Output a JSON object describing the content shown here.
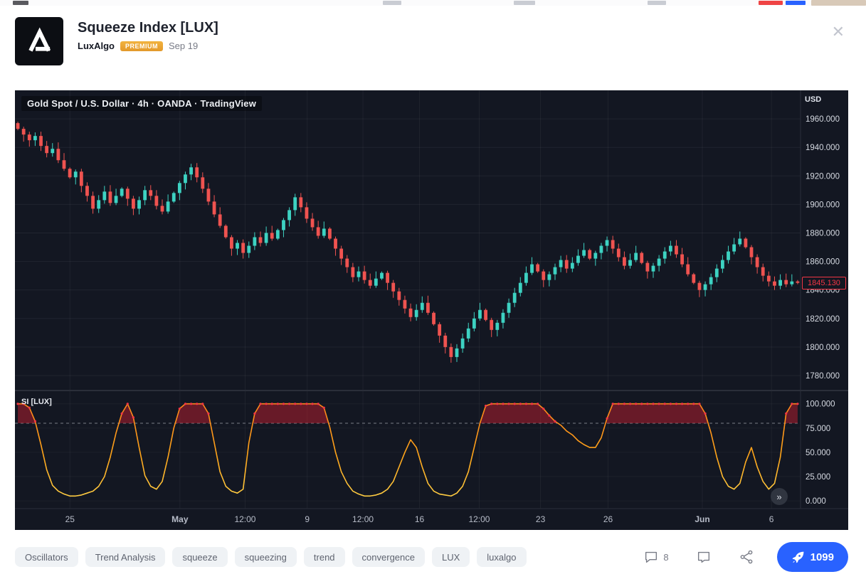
{
  "header": {
    "title": "Squeeze Index [LUX]",
    "author": "LuxAlgo",
    "author_badge": "PREMIUM",
    "date": "Sep 19",
    "close": "✕"
  },
  "chart": {
    "symbol_title": "Gold Spot / U.S. Dollar · 4h · OANDA · TradingView",
    "oscillator_label": "SI [LUX]",
    "axis_currency": "USD",
    "last_price": "1845.130",
    "more_button": "»",
    "colors": {
      "background": "#131722",
      "up": "#3dd2c2",
      "down": "#ef5350",
      "separator": "#2a2e39",
      "axis_text": "#d6dae2",
      "time_text": "#b7bcc8",
      "threshold_line": "#9b9fa8",
      "fill_above": "rgba(190,30,45,0.5)",
      "dots": "#f23645",
      "line_top": "#ff7d1a",
      "line_mid": "#ffa519",
      "line_bottom": "#ffd94f",
      "badge_red": "#f23645",
      "accent_blue": "#2962ff"
    }
  },
  "chart_data": [
    {
      "type": "candlestick",
      "name": "Gold Spot / U.S. Dollar",
      "timeframe": "4h",
      "source": "OANDA",
      "y_domain": [
        1770,
        1980
      ],
      "price_ticks": [
        1960,
        1940,
        1920,
        1900,
        1880,
        1860,
        1840,
        1820,
        1800,
        1780
      ],
      "last_price": 1845.13,
      "open_first": 1957,
      "closes": [
        1953,
        1949,
        1945,
        1948,
        1941,
        1936,
        1939,
        1931,
        1925,
        1919,
        1923,
        1913,
        1906,
        1897,
        1903,
        1909,
        1901,
        1906,
        1911,
        1904,
        1897,
        1903,
        1910,
        1906,
        1899,
        1895,
        1902,
        1908,
        1915,
        1921,
        1926,
        1919,
        1911,
        1902,
        1893,
        1885,
        1877,
        1869,
        1873,
        1866,
        1871,
        1877,
        1873,
        1880,
        1876,
        1882,
        1889,
        1896,
        1905,
        1898,
        1890,
        1884,
        1878,
        1883,
        1876,
        1869,
        1862,
        1856,
        1849,
        1853,
        1847,
        1843,
        1848,
        1852,
        1845,
        1839,
        1833,
        1827,
        1821,
        1826,
        1831,
        1824,
        1816,
        1808,
        1800,
        1793,
        1799,
        1806,
        1813,
        1820,
        1826,
        1819,
        1812,
        1817,
        1824,
        1831,
        1838,
        1845,
        1852,
        1858,
        1853,
        1847,
        1851,
        1856,
        1861,
        1855,
        1859,
        1864,
        1868,
        1862,
        1866,
        1871,
        1875,
        1869,
        1863,
        1857,
        1861,
        1866,
        1859,
        1853,
        1857,
        1862,
        1867,
        1871,
        1865,
        1858,
        1851,
        1845,
        1840,
        1844,
        1849,
        1855,
        1861,
        1867,
        1872,
        1876,
        1870,
        1863,
        1856,
        1850,
        1846,
        1843,
        1847,
        1844,
        1846,
        1845
      ]
    },
    {
      "type": "area",
      "name": "SI [LUX]",
      "y_domain": [
        -8,
        113
      ],
      "ticks": [
        100,
        75,
        50,
        25,
        0
      ],
      "threshold": 80,
      "values": [
        100,
        100,
        96,
        82,
        58,
        32,
        16,
        10,
        7,
        5,
        5,
        6,
        8,
        10,
        15,
        25,
        45,
        70,
        90,
        100,
        86,
        55,
        26,
        15,
        12,
        20,
        45,
        75,
        95,
        100,
        100,
        100,
        100,
        90,
        60,
        30,
        15,
        10,
        8,
        12,
        60,
        90,
        100,
        100,
        100,
        100,
        100,
        100,
        100,
        100,
        100,
        100,
        100,
        96,
        76,
        50,
        30,
        18,
        10,
        7,
        5,
        5,
        6,
        8,
        12,
        20,
        35,
        50,
        63,
        55,
        35,
        18,
        10,
        7,
        6,
        5,
        8,
        15,
        30,
        55,
        80,
        98,
        100,
        100,
        100,
        100,
        100,
        100,
        100,
        100,
        100,
        95,
        88,
        82,
        78,
        72,
        68,
        62,
        58,
        55,
        55,
        65,
        85,
        100,
        100,
        100,
        100,
        100,
        100,
        100,
        100,
        100,
        100,
        100,
        100,
        100,
        100,
        100,
        100,
        90,
        70,
        45,
        25,
        15,
        12,
        18,
        40,
        55,
        35,
        20,
        12,
        18,
        45,
        90,
        100,
        100
      ]
    }
  ],
  "time_axis": [
    {
      "label": "25",
      "x": 0.07
    },
    {
      "label": "May",
      "x": 0.21,
      "bold": true
    },
    {
      "label": "12:00",
      "x": 0.293
    },
    {
      "label": "9",
      "x": 0.372
    },
    {
      "label": "12:00",
      "x": 0.443
    },
    {
      "label": "16",
      "x": 0.515
    },
    {
      "label": "12:00",
      "x": 0.591
    },
    {
      "label": "23",
      "x": 0.669
    },
    {
      "label": "26",
      "x": 0.755
    },
    {
      "label": "Jun",
      "x": 0.875,
      "bold": true
    },
    {
      "label": "6",
      "x": 0.963
    }
  ],
  "footer": {
    "tags": [
      "Oscillators",
      "Trend Analysis",
      "squeeze",
      "squeezing",
      "trend",
      "convergence",
      "LUX",
      "luxalgo"
    ],
    "comment_count": "8",
    "boost_count": "1099"
  }
}
